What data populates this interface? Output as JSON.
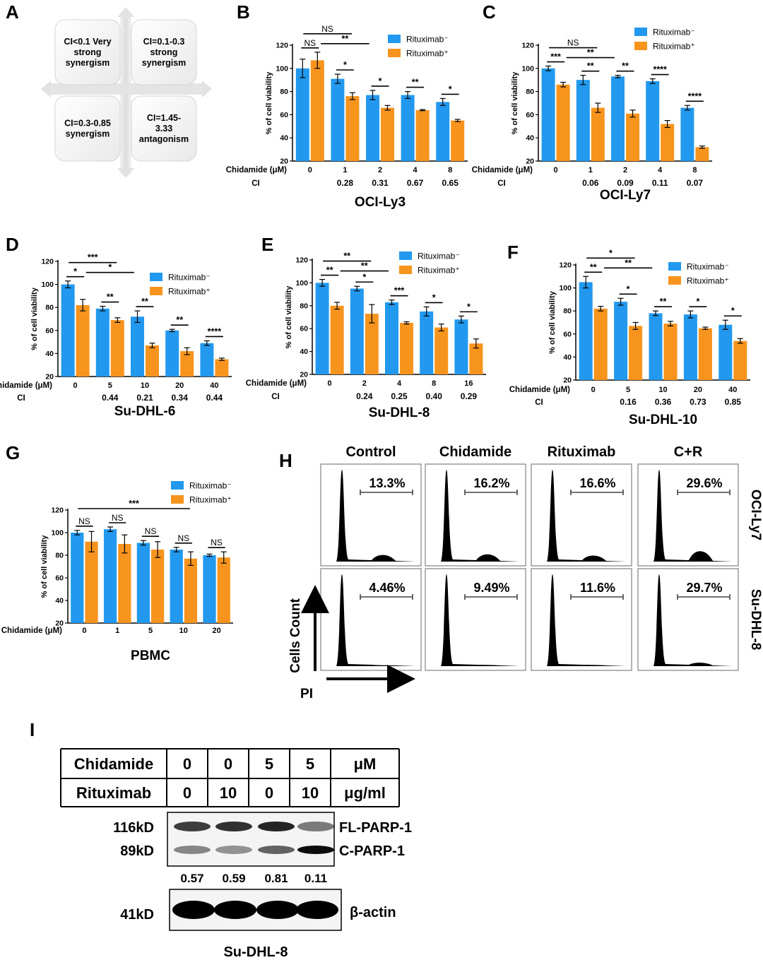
{
  "panel_letters": {
    "A": "A",
    "B": "B",
    "C": "C",
    "D": "D",
    "E": "E",
    "F": "F",
    "G": "G",
    "H": "H",
    "I": "I"
  },
  "colors": {
    "minus": "#2299ee",
    "plus": "#f7941d"
  },
  "legend": {
    "minus": "Rituximab⁻",
    "plus": "Rituximab⁺"
  },
  "common": {
    "ylabel": "% of cell viability",
    "xlabel": "Chidamide (μM)",
    "ci_label": "CI"
  },
  "quadrants": {
    "tl": [
      "CI<0.1 Very",
      "strong",
      "synergism"
    ],
    "tr": [
      "CI=0.1-0.3",
      "strong",
      "synergism"
    ],
    "bl": [
      "CI=0.3-0.85",
      "synergism"
    ],
    "br": [
      "CI=1.45-",
      "3.33",
      "antagonism"
    ]
  },
  "chart_data": [
    {
      "panel": "B",
      "type": "bar",
      "title": "OCI-Ly3",
      "ylim": [
        20,
        120
      ],
      "yticks": [
        20,
        40,
        60,
        80,
        100,
        120
      ],
      "categories": [
        "0",
        "1",
        "2",
        "4",
        "8"
      ],
      "ci": [
        "",
        "0.28",
        "0.31",
        "0.67",
        "0.65"
      ],
      "series": [
        {
          "name": "Rituximab⁻",
          "values": [
            100,
            91,
            77,
            77,
            71
          ],
          "errors": [
            8,
            4,
            4,
            3,
            3
          ]
        },
        {
          "name": "Rituximab⁺",
          "values": [
            107,
            76,
            66,
            64,
            55
          ],
          "errors": [
            7,
            3,
            2,
            0.5,
            1
          ]
        }
      ],
      "annotations": [
        {
          "label": "NS",
          "from": 0,
          "to": 0,
          "level": 0
        },
        {
          "label": "NS",
          "from": 0,
          "to": 1,
          "level": 2
        },
        {
          "label": "**",
          "from": 0.5,
          "to": 1.5,
          "level": 1
        },
        {
          "label": "*",
          "from": 1,
          "to": 1,
          "level": 0
        },
        {
          "label": "*",
          "from": 2,
          "to": 2,
          "level": 0
        },
        {
          "label": "**",
          "from": 3,
          "to": 3,
          "level": 0
        },
        {
          "label": "*",
          "from": 4,
          "to": 4,
          "level": 0
        }
      ]
    },
    {
      "panel": "C",
      "type": "bar",
      "title": "OCI-Ly7",
      "ylim": [
        20,
        120
      ],
      "yticks": [
        20,
        40,
        60,
        80,
        100,
        120
      ],
      "categories": [
        "0",
        "1",
        "2",
        "4",
        "8"
      ],
      "ci": [
        "",
        "0.06",
        "0.09",
        "0.11",
        "0.07"
      ],
      "series": [
        {
          "name": "Rituximab⁻",
          "values": [
            100,
            90,
            93,
            89,
            66
          ],
          "errors": [
            2,
            4,
            1,
            2,
            2
          ]
        },
        {
          "name": "Rituximab⁺",
          "values": [
            86,
            66,
            61,
            52,
            32
          ],
          "errors": [
            2,
            4,
            3,
            3,
            1
          ]
        }
      ],
      "annotations": [
        {
          "label": "***",
          "from": 0,
          "to": 0,
          "level": 0
        },
        {
          "label": "NS",
          "from": 0,
          "to": 1,
          "level": 2
        },
        {
          "label": "**",
          "from": 0.5,
          "to": 1.5,
          "level": 1
        },
        {
          "label": "**",
          "from": 1,
          "to": 1,
          "level": 0
        },
        {
          "label": "**",
          "from": 2,
          "to": 2,
          "level": 0
        },
        {
          "label": "****",
          "from": 3,
          "to": 3,
          "level": 0
        },
        {
          "label": "****",
          "from": 4,
          "to": 4,
          "level": 0
        }
      ]
    },
    {
      "panel": "D",
      "type": "bar",
      "title": "Su-DHL-6",
      "ylim": [
        20,
        120
      ],
      "yticks": [
        20,
        40,
        60,
        80,
        100,
        120
      ],
      "categories": [
        "0",
        "5",
        "10",
        "20",
        "40"
      ],
      "ci": [
        "",
        "0.44",
        "0.21",
        "0.34",
        "0.44"
      ],
      "series": [
        {
          "name": "Rituximab⁻",
          "values": [
            100,
            79,
            72,
            60,
            49
          ],
          "errors": [
            3,
            2,
            5,
            1,
            2
          ]
        },
        {
          "name": "Rituximab⁺",
          "values": [
            82,
            69,
            47,
            42,
            35
          ],
          "errors": [
            5,
            2,
            2,
            3,
            1
          ]
        }
      ],
      "annotations": [
        {
          "label": "*",
          "from": 0,
          "to": 0,
          "level": 0
        },
        {
          "label": "***",
          "from": 0,
          "to": 1,
          "level": 2
        },
        {
          "label": "*",
          "from": 0.5,
          "to": 1.5,
          "level": 1
        },
        {
          "label": "**",
          "from": 1,
          "to": 1,
          "level": 0
        },
        {
          "label": "**",
          "from": 2,
          "to": 2,
          "level": 0
        },
        {
          "label": "**",
          "from": 3,
          "to": 3,
          "level": 0
        },
        {
          "label": "****",
          "from": 4,
          "to": 4,
          "level": 0
        }
      ]
    },
    {
      "panel": "E",
      "type": "bar",
      "title": "Su-DHL-8",
      "ylim": [
        20,
        120
      ],
      "yticks": [
        20,
        40,
        60,
        80,
        100,
        120
      ],
      "categories": [
        "0",
        "2",
        "4",
        "8",
        "16"
      ],
      "ci": [
        "",
        "0.24",
        "0.25",
        "0.40",
        "0.29"
      ],
      "series": [
        {
          "name": "Rituximab⁻",
          "values": [
            100,
            95,
            83,
            75,
            68
          ],
          "errors": [
            3,
            2,
            2,
            4,
            3
          ]
        },
        {
          "name": "Rituximab⁺",
          "values": [
            80,
            73,
            65,
            61,
            47
          ],
          "errors": [
            3,
            8,
            1,
            3,
            4
          ]
        }
      ],
      "annotations": [
        {
          "label": "**",
          "from": 0,
          "to": 0,
          "level": 0
        },
        {
          "label": "**",
          "from": 0,
          "to": 1,
          "level": 2
        },
        {
          "label": "**",
          "from": 0.5,
          "to": 1.5,
          "level": 1
        },
        {
          "label": "*",
          "from": 1,
          "to": 1,
          "level": 0
        },
        {
          "label": "***",
          "from": 2,
          "to": 2,
          "level": 0
        },
        {
          "label": "*",
          "from": 3,
          "to": 3,
          "level": 0
        },
        {
          "label": "*",
          "from": 4,
          "to": 4,
          "level": 0
        }
      ]
    },
    {
      "panel": "F",
      "type": "bar",
      "title": "Su-DHL-10",
      "ylim": [
        20,
        120
      ],
      "yticks": [
        20,
        40,
        60,
        80,
        100,
        120
      ],
      "categories": [
        "0",
        "5",
        "10",
        "20",
        "40"
      ],
      "ci": [
        "",
        "0.16",
        "0.36",
        "0.73",
        "0.85"
      ],
      "series": [
        {
          "name": "Rituximab⁻",
          "values": [
            105,
            88,
            78,
            77,
            68
          ],
          "errors": [
            5,
            3,
            2,
            3,
            4
          ]
        },
        {
          "name": "Rituximab⁺",
          "values": [
            82,
            67,
            69,
            65,
            54
          ],
          "errors": [
            2,
            3,
            2,
            1,
            2
          ]
        }
      ],
      "annotations": [
        {
          "label": "**",
          "from": 0,
          "to": 0,
          "level": 0
        },
        {
          "label": "*",
          "from": 0,
          "to": 1,
          "level": 2
        },
        {
          "label": "**",
          "from": 0.5,
          "to": 1.5,
          "level": 1
        },
        {
          "label": "*",
          "from": 1,
          "to": 1,
          "level": 0
        },
        {
          "label": "**",
          "from": 2,
          "to": 2,
          "level": 0
        },
        {
          "label": "*",
          "from": 3,
          "to": 3,
          "level": 0
        },
        {
          "label": "*",
          "from": 4,
          "to": 4,
          "level": 0
        }
      ]
    },
    {
      "panel": "G",
      "type": "bar",
      "title": "PBMC",
      "ylim": [
        20,
        120
      ],
      "yticks": [
        20,
        40,
        60,
        80,
        100,
        120
      ],
      "categories": [
        "0",
        "1",
        "5",
        "10",
        "20"
      ],
      "ci": [],
      "series": [
        {
          "name": "Rituximab⁻",
          "values": [
            100,
            103,
            91,
            85,
            80
          ],
          "errors": [
            2,
            2,
            2,
            2,
            1
          ]
        },
        {
          "name": "Rituximab⁺",
          "values": [
            92,
            90,
            85,
            77,
            78
          ],
          "errors": [
            9,
            8,
            7,
            6,
            5
          ]
        }
      ],
      "annotations": [
        {
          "label": "NS",
          "from": 0,
          "to": 0,
          "level": 0
        },
        {
          "label": "NS",
          "from": 1,
          "to": 1,
          "level": 0
        },
        {
          "label": "NS",
          "from": 2,
          "to": 2,
          "level": 0
        },
        {
          "label": "NS",
          "from": 3,
          "to": 3,
          "level": 0
        },
        {
          "label": "NS",
          "from": 4,
          "to": 4,
          "level": 0
        },
        {
          "label": "***",
          "from": 0,
          "to": 3,
          "level": 2
        }
      ]
    }
  ],
  "flow": {
    "columns": [
      "Control",
      "Chidamide",
      "Rituximab",
      "C+R"
    ],
    "rows": [
      "OCI-Ly7",
      "Su-DHL-8"
    ],
    "percentages": [
      [
        "13.3%",
        "16.2%",
        "16.6%",
        "29.6%"
      ],
      [
        "4.46%",
        "9.49%",
        "11.6%",
        "29.7%"
      ]
    ],
    "y_arrow_label": "Cells Count",
    "x_arrow_label": "PI"
  },
  "western": {
    "table": [
      [
        "Chidamide",
        "0",
        "0",
        "5",
        "5",
        "μM"
      ],
      [
        "Rituximab",
        "0",
        "10",
        "0",
        "10",
        "μg/ml"
      ]
    ],
    "markers": [
      "116kD",
      "89kD",
      "41kD"
    ],
    "bands": [
      "FL-PARP-1",
      "C-PARP-1",
      "β-actin"
    ],
    "ratios": [
      "0.57",
      "0.59",
      "0.81",
      "0.11"
    ],
    "cell_line": "Su-DHL-8"
  }
}
